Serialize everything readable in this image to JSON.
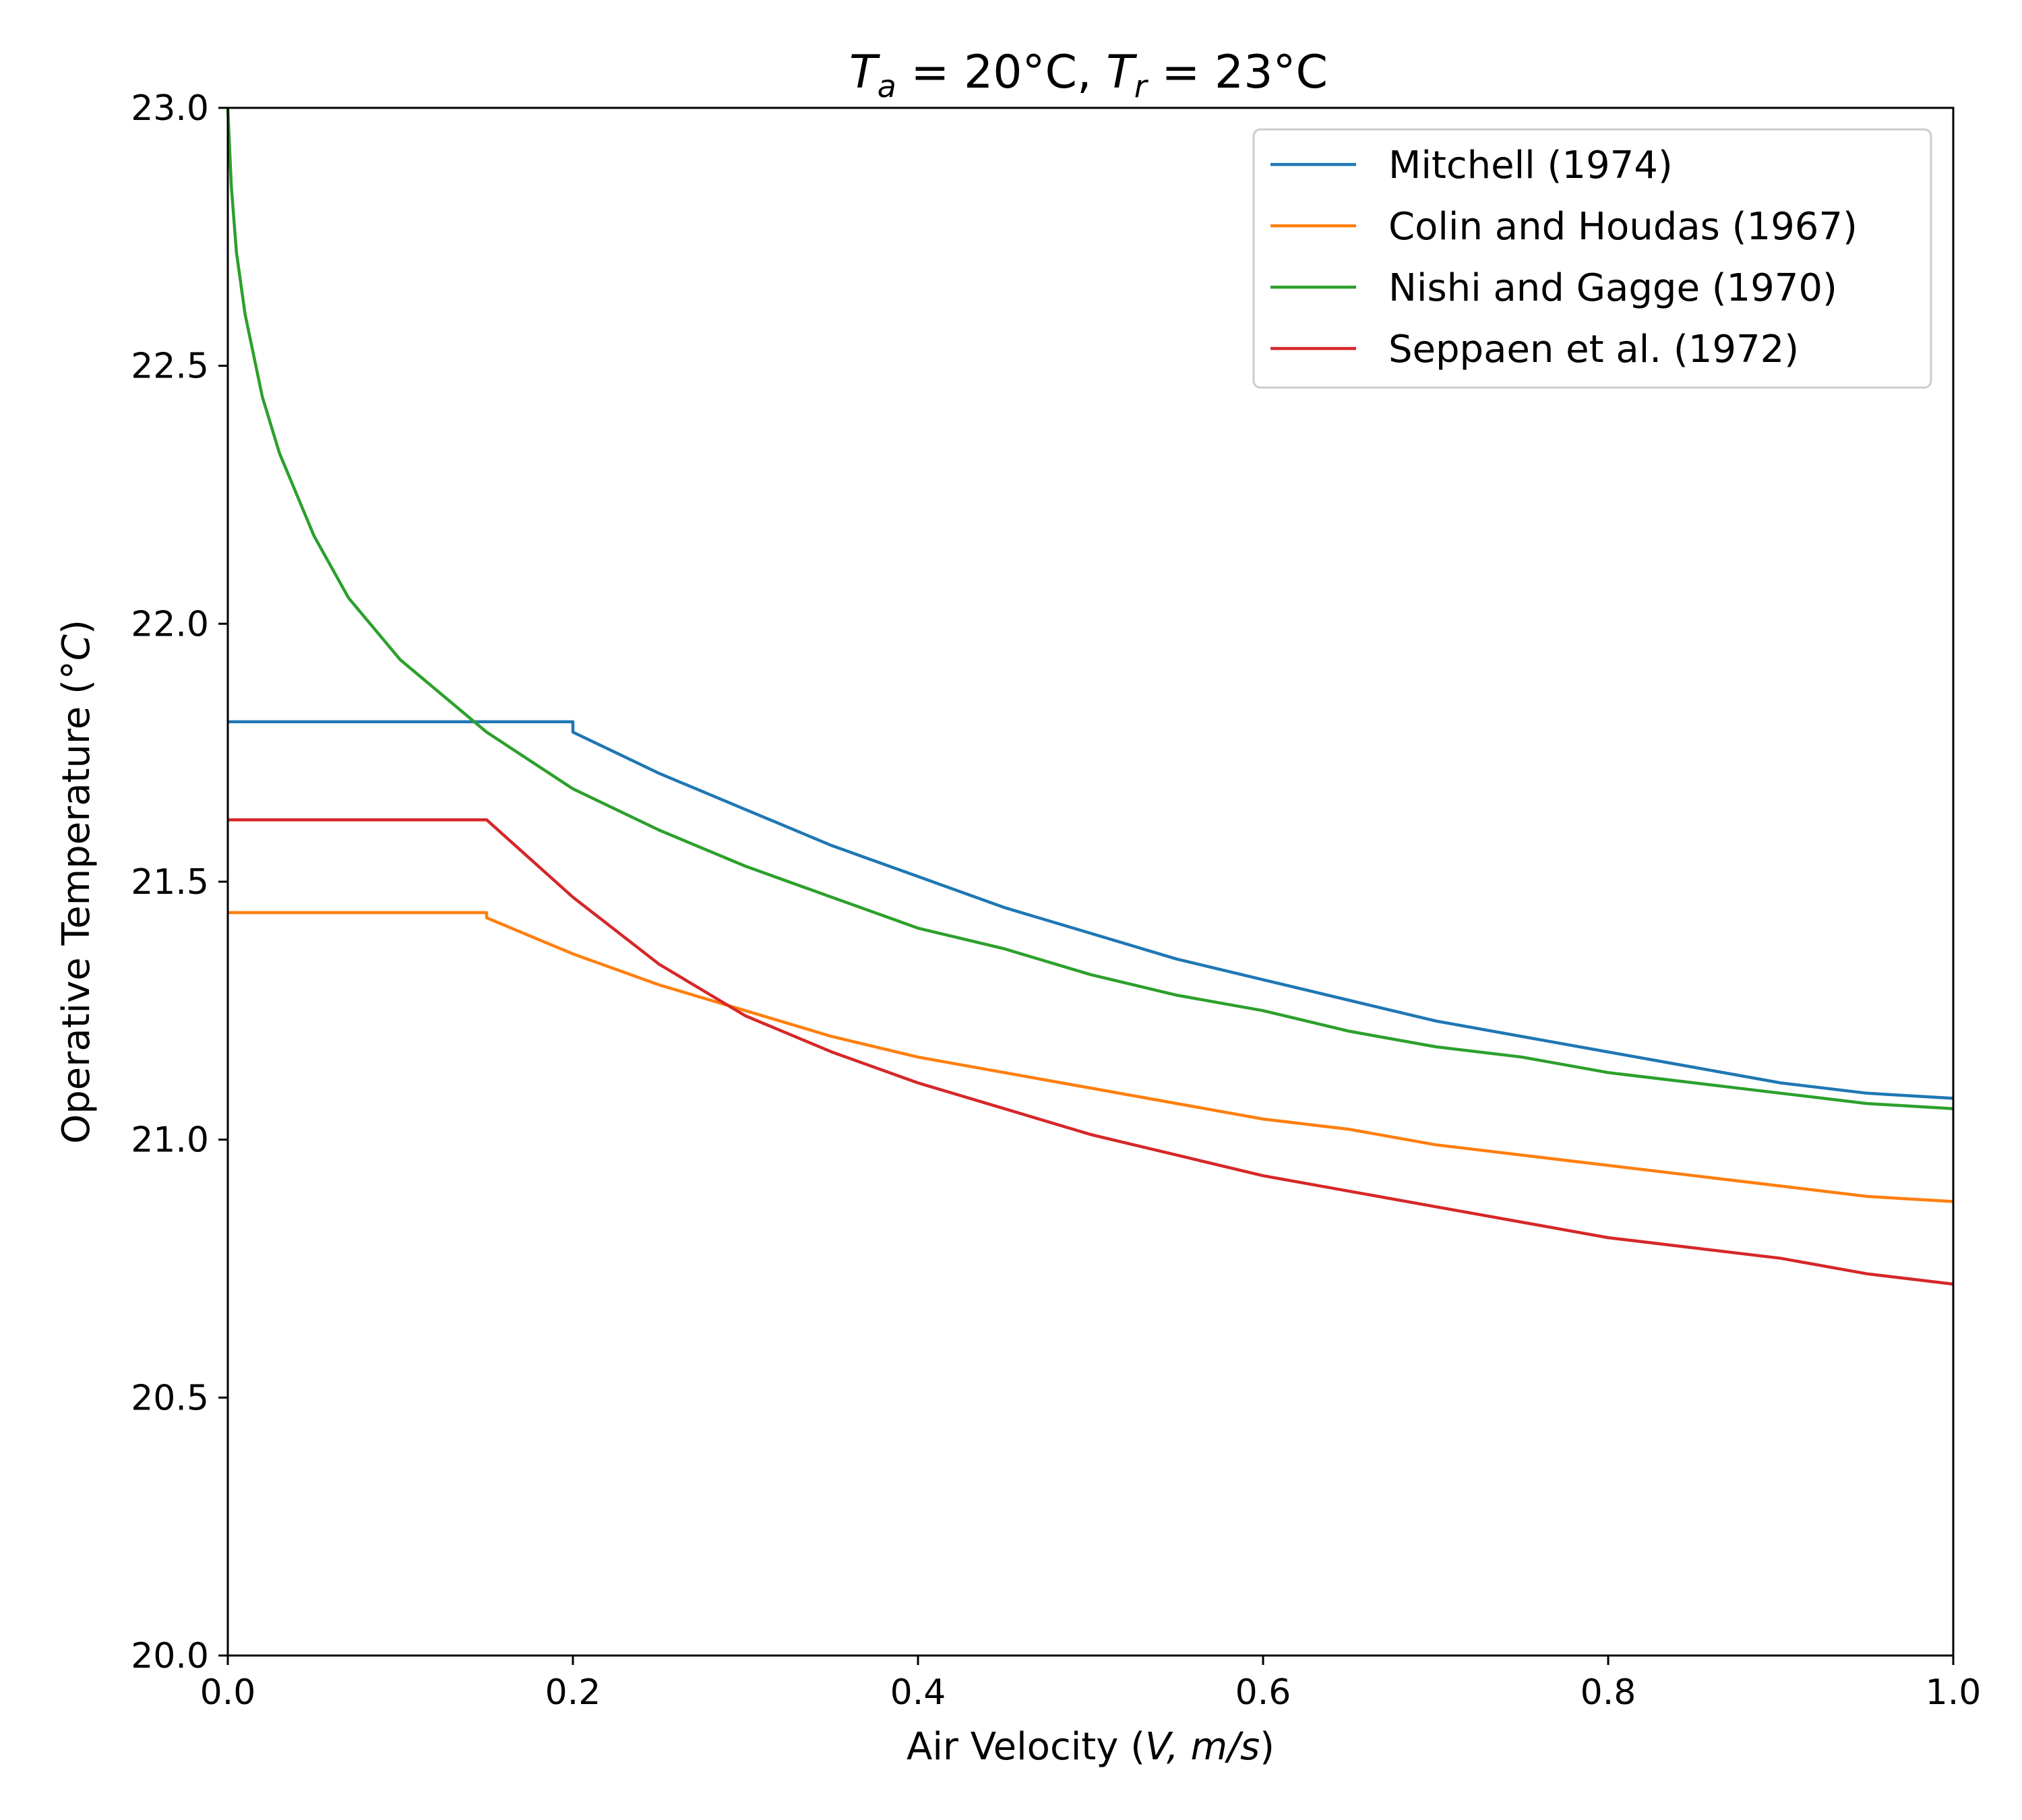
{
  "chart_data": {
    "type": "line",
    "title": {
      "main": "T",
      "sub_a": "a",
      "mid": " = 20°C, ",
      "main2": "T",
      "sub_r": "r",
      "end": " = 23°C"
    },
    "xlabel": {
      "prefix": "Air Velocity (",
      "var": "V, m/s",
      "suffix": ")"
    },
    "ylabel": {
      "prefix": "Operative Temperature (°",
      "var": "C",
      "suffix": ")"
    },
    "xlim": [
      0.0,
      1.0
    ],
    "ylim": [
      20.0,
      23.0
    ],
    "xticks": [
      "0.0",
      "0.2",
      "0.4",
      "0.6",
      "0.8",
      "1.0"
    ],
    "yticks": [
      "20.0",
      "20.5",
      "21.0",
      "21.5",
      "22.0",
      "22.5",
      "23.0"
    ],
    "grid": false,
    "legend_position": "top-right",
    "series": [
      {
        "name": "Mitchell (1974)",
        "color": "#1f77b4",
        "x": [
          0.0,
          0.05,
          0.1,
          0.15,
          0.2,
          0.2,
          0.25,
          0.3,
          0.35,
          0.4,
          0.45,
          0.5,
          0.55,
          0.6,
          0.65,
          0.7,
          0.75,
          0.8,
          0.85,
          0.9,
          0.95,
          1.0
        ],
        "y": [
          21.81,
          21.81,
          21.81,
          21.81,
          21.81,
          21.79,
          21.71,
          21.64,
          21.57,
          21.51,
          21.45,
          21.4,
          21.35,
          21.31,
          21.27,
          21.23,
          21.2,
          21.17,
          21.14,
          21.11,
          21.09,
          21.08
        ]
      },
      {
        "name": "Colin and Houdas (1967)",
        "color": "#ff7f0e",
        "x": [
          0.0,
          0.05,
          0.1,
          0.15,
          0.15,
          0.2,
          0.25,
          0.3,
          0.35,
          0.4,
          0.45,
          0.5,
          0.55,
          0.6,
          0.65,
          0.7,
          0.75,
          0.8,
          0.85,
          0.9,
          0.95,
          1.0
        ],
        "y": [
          21.44,
          21.44,
          21.44,
          21.44,
          21.43,
          21.36,
          21.3,
          21.25,
          21.2,
          21.16,
          21.13,
          21.1,
          21.07,
          21.04,
          21.02,
          20.99,
          20.97,
          20.95,
          20.93,
          20.91,
          20.89,
          20.88
        ]
      },
      {
        "name": "Nishi and Gagge (1970)",
        "color": "#2ca02c",
        "x": [
          0.0,
          0.002,
          0.005,
          0.01,
          0.02,
          0.03,
          0.05,
          0.07,
          0.1,
          0.15,
          0.2,
          0.25,
          0.3,
          0.35,
          0.4,
          0.45,
          0.5,
          0.55,
          0.6,
          0.65,
          0.7,
          0.75,
          0.8,
          0.85,
          0.9,
          0.95,
          1.0
        ],
        "y": [
          23.0,
          22.85,
          22.72,
          22.6,
          22.44,
          22.33,
          22.17,
          22.05,
          21.93,
          21.79,
          21.68,
          21.6,
          21.53,
          21.47,
          21.41,
          21.37,
          21.32,
          21.28,
          21.25,
          21.21,
          21.18,
          21.16,
          21.13,
          21.11,
          21.09,
          21.07,
          21.06
        ]
      },
      {
        "name": "Seppaen et al. (1972)",
        "color": "#d62728",
        "x": [
          0.0,
          0.05,
          0.1,
          0.15,
          0.2,
          0.25,
          0.3,
          0.35,
          0.4,
          0.45,
          0.5,
          0.55,
          0.6,
          0.65,
          0.7,
          0.75,
          0.8,
          0.85,
          0.9,
          0.95,
          1.0
        ],
        "y": [
          21.62,
          21.62,
          21.62,
          21.62,
          21.47,
          21.34,
          21.24,
          21.17,
          21.11,
          21.06,
          21.01,
          20.97,
          20.93,
          20.9,
          20.87,
          20.84,
          20.81,
          20.79,
          20.77,
          20.74,
          20.72
        ]
      }
    ]
  }
}
